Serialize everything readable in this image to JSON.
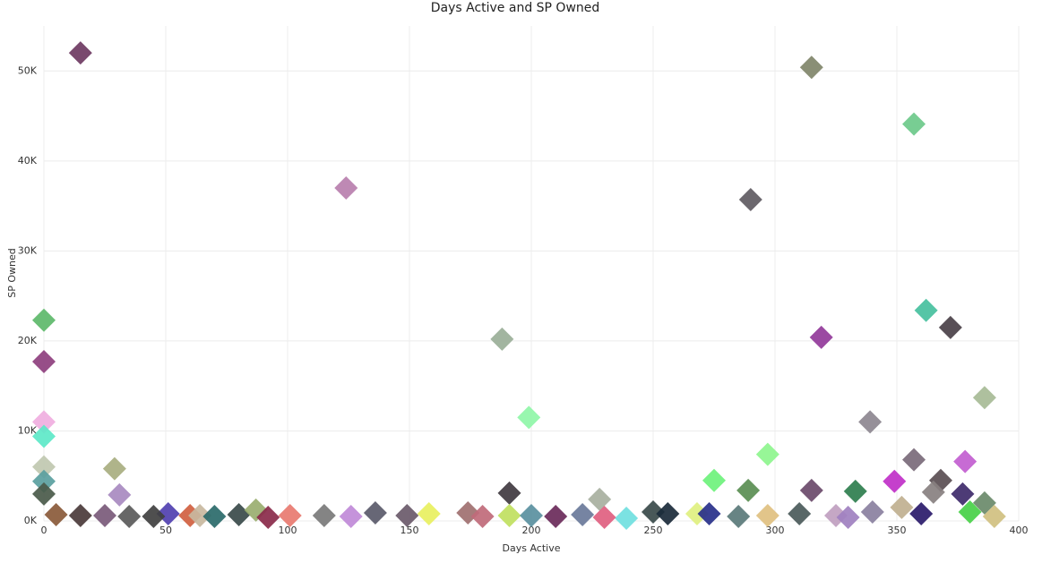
{
  "chart_data": {
    "type": "scatter",
    "title": "Days Active and SP Owned",
    "x_label": "Days Active",
    "y_label": "SP Owned",
    "xlim": [
      0,
      400
    ],
    "xticks": [
      0,
      50,
      100,
      150,
      200,
      250,
      300,
      350,
      400
    ],
    "ylim": [
      0,
      55000
    ],
    "yticks": [
      {
        "value": 0,
        "label": "0K"
      },
      {
        "value": 10000,
        "label": "10K"
      },
      {
        "value": 20000,
        "label": "20K"
      },
      {
        "value": 30000,
        "label": "30K"
      },
      {
        "value": 40000,
        "label": "40K"
      },
      {
        "value": 50000,
        "label": "50K"
      }
    ],
    "grid": true,
    "x": [
      15,
      124,
      315,
      357,
      290,
      0,
      0,
      0,
      0,
      188,
      199,
      319,
      362,
      372,
      386,
      339,
      297,
      275,
      289,
      315,
      333,
      349,
      357,
      378,
      368,
      377,
      386,
      191,
      228,
      29,
      31,
      0,
      0,
      0,
      15,
      51,
      60,
      64,
      80,
      87,
      92,
      101,
      115,
      126,
      136,
      149,
      158,
      174,
      191,
      200,
      221,
      239,
      250,
      256,
      268,
      273,
      285,
      297,
      310,
      325,
      340,
      352,
      365,
      380,
      390,
      45,
      25,
      5,
      35,
      70,
      180,
      210,
      230,
      330,
      360
    ],
    "values": [
      52000,
      37000,
      50400,
      44100,
      35700,
      22300,
      17700,
      11000,
      9400,
      20200,
      11500,
      20400,
      23400,
      21500,
      13700,
      11000,
      7400,
      4500,
      3400,
      3400,
      3300,
      4400,
      6800,
      6600,
      4500,
      3000,
      2000,
      3100,
      2400,
      5800,
      2900,
      6000,
      4400,
      3000,
      600,
      800,
      600,
      600,
      700,
      1200,
      400,
      600,
      600,
      500,
      900,
      600,
      800,
      900,
      600,
      600,
      700,
      300,
      1000,
      800,
      800,
      800,
      500,
      600,
      800,
      600,
      1000,
      1500,
      3200,
      1000,
      500,
      500,
      600,
      700,
      500,
      500,
      500,
      500,
      400,
      400,
      800
    ],
    "colors": [
      "#6e3a62",
      "#b97fae",
      "#80866a",
      "#6cc98a",
      "#5f5b62",
      "#5db96a",
      "#8e3f7e",
      "#f0aee0",
      "#5de8c8",
      "#9aaf98",
      "#8ff6a8",
      "#923a9a",
      "#46c09e",
      "#4a4048",
      "#a7bb96",
      "#8d8790",
      "#8ef58e",
      "#6ef27c",
      "#5a8e52",
      "#6a4a6a",
      "#2e7e4e",
      "#c030c8",
      "#7a6a7a",
      "#c25ed0",
      "#5a4e52",
      "#3e2a6a",
      "#6a8a6a",
      "#403a40",
      "#a8b0a0",
      "#a8ae80",
      "#a88ac0",
      "#c0c8b0",
      "#5aa0a0",
      "#4a5a4a",
      "#4a3a3a",
      "#5040b0",
      "#d06040",
      "#c8b8a0",
      "#3a4a4a",
      "#9aae70",
      "#8a2a4a",
      "#e87a70",
      "#7a7a7a",
      "#c08ad8",
      "#5a5a6a",
      "#6a5a6a",
      "#e8f060",
      "#a07070",
      "#c0e060",
      "#5a90a0",
      "#6a7a9a",
      "#70e0e0",
      "#3a4a4a",
      "#1a2a3a",
      "#e0f080",
      "#28308a",
      "#5a7a7a",
      "#e0c080",
      "#4a5a5a",
      "#c0a0c0",
      "#8a80a0",
      "#c0b090",
      "#888080",
      "#48d048",
      "#d0c080",
      "#404040",
      "#7a5a7a",
      "#8a5a3a",
      "#5a5a5a",
      "#2a6a6a",
      "#c06a7a",
      "#6a2a5a",
      "#e06080",
      "#a080c0",
      "#2a1a6a"
    ]
  }
}
